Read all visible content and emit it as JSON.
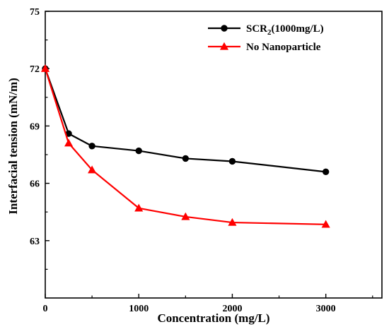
{
  "chart_data": {
    "type": "line",
    "xlabel": "Concentration (mg/L)",
    "ylabel": "Interfacial tension (mN/m)",
    "xlim": [
      0,
      3600
    ],
    "ylim": [
      60,
      75
    ],
    "x_ticks": [
      0,
      1000,
      2000,
      3000
    ],
    "y_ticks": [
      63,
      66,
      69,
      72,
      75
    ],
    "grid": false,
    "legend_position": "top-right",
    "series": [
      {
        "name_main": "SCR",
        "name_sub": "2",
        "name_suffix": "(1000mg/L)",
        "color": "#000000",
        "marker": "circle",
        "x": [
          0,
          250,
          500,
          1000,
          1500,
          2000,
          3000
        ],
        "y": [
          72.0,
          68.6,
          67.95,
          67.7,
          67.3,
          67.15,
          66.6
        ]
      },
      {
        "name": "No Nanoparticle",
        "color": "#ff0000",
        "marker": "triangle",
        "x": [
          0,
          250,
          500,
          1000,
          1500,
          2000,
          3000
        ],
        "y": [
          72.0,
          68.1,
          66.7,
          64.7,
          64.25,
          63.95,
          63.85
        ]
      }
    ]
  }
}
